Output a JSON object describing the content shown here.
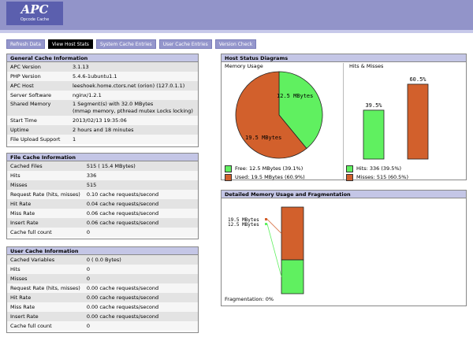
{
  "header": {
    "logo_title": "APC",
    "logo_subtitle": "Opcode Cache"
  },
  "menu": [
    {
      "label": "Refresh Data"
    },
    {
      "label": "View Host Stats"
    },
    {
      "label": "System Cache Entries"
    },
    {
      "label": "User Cache Entries"
    },
    {
      "label": "Version Check"
    }
  ],
  "general": {
    "title": "General Cache Information",
    "rows": [
      {
        "k": "APC Version",
        "v": "3.1.13"
      },
      {
        "k": "PHP Version",
        "v": "5.4.6-1ubuntu1.1"
      },
      {
        "k": "APC Host",
        "v": "leeshoek.home.ctors.net (orion) (127.0.1.1)"
      },
      {
        "k": "Server Software",
        "v": "nginx/1.2.1"
      },
      {
        "k": "Shared Memory",
        "v": "1 Segment(s) with 32.0 MBytes",
        "v2": "(mmap memory, pthread mutex Locks locking)"
      },
      {
        "k": "Start Time",
        "v": "2013/02/13 19:35:06"
      },
      {
        "k": "Uptime",
        "v": "2 hours and 18 minutes"
      },
      {
        "k": "File Upload Support",
        "v": "1"
      }
    ]
  },
  "file_cache": {
    "title": "File Cache Information",
    "rows": [
      {
        "k": "Cached Files",
        "v": "515 ( 15.4 MBytes)"
      },
      {
        "k": "Hits",
        "v": "336"
      },
      {
        "k": "Misses",
        "v": "515"
      },
      {
        "k": "Request Rate (hits, misses)",
        "v": "0.10 cache requests/second"
      },
      {
        "k": "Hit Rate",
        "v": "0.04 cache requests/second"
      },
      {
        "k": "Miss Rate",
        "v": "0.06 cache requests/second"
      },
      {
        "k": "Insert Rate",
        "v": "0.06 cache requests/second"
      },
      {
        "k": "Cache full count",
        "v": "0"
      }
    ]
  },
  "user_cache": {
    "title": "User Cache Information",
    "rows": [
      {
        "k": "Cached Variables",
        "v": "0 ( 0.0 Bytes)"
      },
      {
        "k": "Hits",
        "v": "0"
      },
      {
        "k": "Misses",
        "v": "0"
      },
      {
        "k": "Request Rate (hits, misses)",
        "v": "0.00 cache requests/second"
      },
      {
        "k": "Hit Rate",
        "v": "0.00 cache requests/second"
      },
      {
        "k": "Miss Rate",
        "v": "0.00 cache requests/second"
      },
      {
        "k": "Insert Rate",
        "v": "0.00 cache requests/second"
      },
      {
        "k": "Cache full count",
        "v": "0"
      }
    ]
  },
  "diagrams": {
    "title": "Host Status Diagrams",
    "memory_heading": "Memory Usage",
    "hits_heading": "Hits & Misses",
    "legend_free": "Free: 12.5 MBytes (39.1%)",
    "legend_used": "Used: 19.5 MBytes (60.9%)",
    "legend_hits": "Hits: 336 (39.5%)",
    "legend_misses": "Misses: 515 (60.5%)"
  },
  "fragmentation": {
    "title": "Detailed Memory Usage and Fragmentation",
    "label": "Fragmentation: 0%"
  },
  "colors": {
    "green": "#60f060",
    "orange": "#d2602c",
    "header": "#9294c9"
  },
  "chart_data": [
    {
      "type": "pie",
      "labels": [
        "12.5 MBytes",
        "19.5 MBytes"
      ],
      "values": [
        12.5,
        19.5
      ],
      "colors": [
        "#60f060",
        "#d2602c"
      ]
    },
    {
      "type": "bar",
      "categories": [
        "Hits",
        "Misses"
      ],
      "values": [
        39.5,
        60.5
      ],
      "data_labels": [
        "39.5%",
        "60.5%"
      ],
      "colors": [
        "#60f060",
        "#d2602c"
      ]
    },
    {
      "type": "bar",
      "orientation": "stacked-vertical",
      "segments": [
        {
          "label": "19.5 MBytes",
          "value": 19.5,
          "color": "#d2602c"
        },
        {
          "label": "12.5 MBytes",
          "value": 12.5,
          "color": "#60f060"
        }
      ]
    }
  ]
}
